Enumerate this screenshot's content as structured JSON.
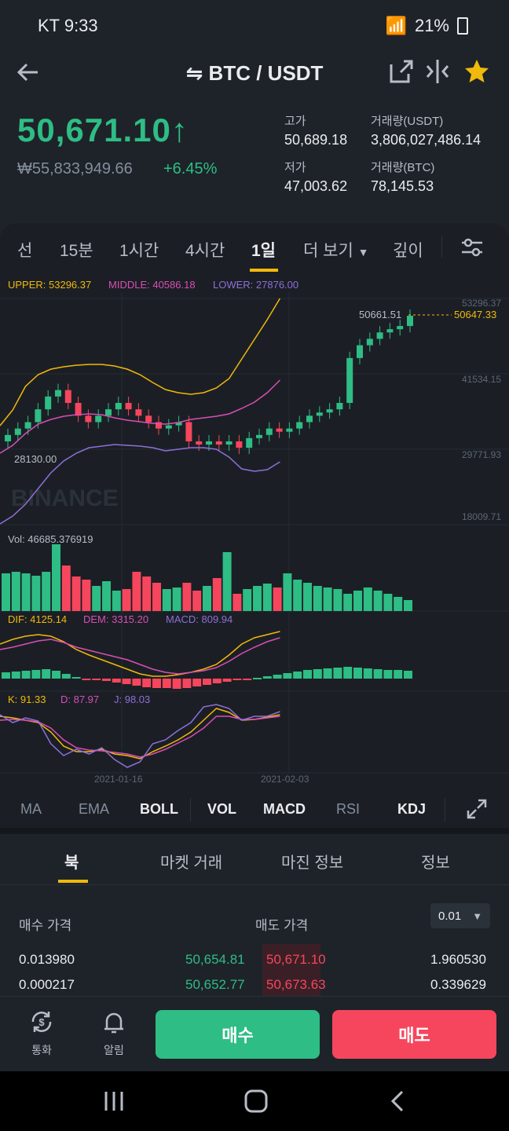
{
  "status": {
    "carrier_time": "KT 9:33",
    "battery": "21%"
  },
  "header": {
    "pair": "⇋ BTC / USDT"
  },
  "ticker": {
    "price": "50,671.10",
    "price_arrow": "↑",
    "krw": "₩55,833,949.66",
    "change": "+6.45%",
    "high_label": "고가",
    "high": "50,689.18",
    "low_label": "저가",
    "low": "47,003.62",
    "vol_usdt_label": "거래량(USDT)",
    "vol_usdt": "3,806,027,486.14",
    "vol_btc_label": "거래량(BTC)",
    "vol_btc": "78,145.53"
  },
  "tabs": [
    "선",
    "15분",
    "1시간",
    "4시간",
    "1일",
    "더 보기",
    "깊이"
  ],
  "indicators": {
    "upper": "UPPER: 53296.37",
    "middle": "MIDDLE: 40586.18",
    "lower": "LOWER: 27876.00",
    "vol": "Vol: 46685.376919",
    "dif": "DIF: 4125.14",
    "dem": "DEM: 3315.20",
    "macd": "MACD: 809.94",
    "k": "K: 91.33",
    "d": "D: 87.97",
    "j": "J: 98.03"
  },
  "axis": {
    "y1": "53296.37",
    "y2": "41534.15",
    "y3": "29771.93",
    "y4": "18009.71",
    "last_price": "50647.33",
    "max_label": "50661.51",
    "min_label": "28130.00",
    "date1": "2021-01-16",
    "date2": "2021-02-03",
    "watermark": "BINANCE"
  },
  "bottom_indicators": [
    "MA",
    "EMA",
    "BOLL",
    "VOL",
    "MACD",
    "RSI",
    "KDJ"
  ],
  "orderbook": {
    "tabs": [
      "북",
      "마켓 거래",
      "마진 정보",
      "정보"
    ],
    "buy_header": "매수 가격",
    "sell_header": "매도 가격",
    "precision": "0.01",
    "rows": [
      {
        "bid_qty": "0.013980",
        "bid": "50,654.81",
        "ask": "50,671.10",
        "ask_qty": "1.960530"
      },
      {
        "bid_qty": "0.000217",
        "bid": "50,652.77",
        "ask": "50,673.63",
        "ask_qty": "0.339629"
      }
    ]
  },
  "nav": {
    "convert": "통화",
    "alerts": "알림",
    "buy": "매수",
    "sell": "매도"
  },
  "colors": {
    "up": "#2ebd85",
    "down": "#f6465d",
    "accent": "#f0b90b"
  }
}
